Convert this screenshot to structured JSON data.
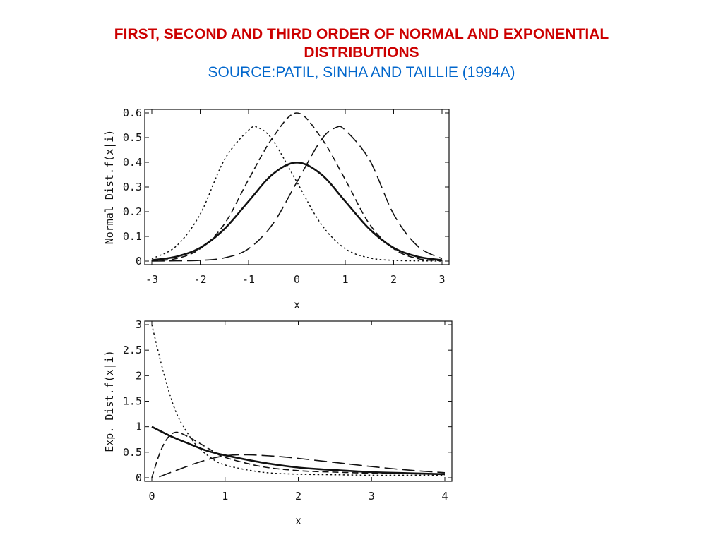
{
  "colors": {
    "title": "#cc0000",
    "source": "#0066cc",
    "ink": "#111111"
  },
  "title_line1": "FIRST, SECOND AND THIRD ORDER OF NORMAL AND EXPONENTIAL",
  "title_line2": "DISTRIBUTIONS",
  "source": "SOURCE:PATIL, SINHA AND TAILLIE (1994A)",
  "chart_data": [
    {
      "type": "line",
      "xlabel": "x",
      "ylabel": "Normal Dist.f(x|i)",
      "xlim": [
        -3,
        3
      ],
      "ylim": [
        0,
        0.6
      ],
      "xticks": [
        "-3",
        "-2",
        "-1",
        "0",
        "1",
        "2",
        "3"
      ],
      "yticks": [
        "0",
        "0.1",
        "0.2",
        "0.3",
        "0.4",
        "0.5",
        "0.6"
      ],
      "grid": false,
      "series": [
        {
          "style": "solid",
          "x": [
            -3,
            -2.5,
            -2,
            -1.5,
            -1,
            -0.5,
            0,
            0.5,
            1,
            1.5,
            2,
            2.5,
            3
          ],
          "y": [
            0.004,
            0.018,
            0.054,
            0.13,
            0.242,
            0.352,
            0.399,
            0.352,
            0.242,
            0.13,
            0.054,
            0.018,
            0.004
          ]
        },
        {
          "style": "dotted",
          "x": [
            -3,
            -2.5,
            -2,
            -1.5,
            -1,
            -0.8,
            -0.5,
            0,
            0.5,
            1,
            1.5,
            2,
            2.5,
            3
          ],
          "y": [
            0.01,
            0.06,
            0.19,
            0.41,
            0.53,
            0.54,
            0.49,
            0.32,
            0.15,
            0.05,
            0.013,
            0.003,
            0.001,
            0
          ]
        },
        {
          "style": "dashed",
          "x": [
            -3,
            -2.5,
            -2,
            -1.5,
            -1,
            -0.5,
            0,
            0.5,
            1,
            1.5,
            2,
            2.5,
            3
          ],
          "y": [
            0.002,
            0.01,
            0.05,
            0.15,
            0.33,
            0.5,
            0.6,
            0.5,
            0.33,
            0.15,
            0.05,
            0.01,
            0.002
          ]
        },
        {
          "style": "longdash",
          "x": [
            -3,
            -2.5,
            -2,
            -1.5,
            -1,
            -0.5,
            0,
            0.5,
            0.8,
            1,
            1.5,
            2,
            2.5,
            3
          ],
          "y": [
            0,
            0.001,
            0.003,
            0.013,
            0.05,
            0.15,
            0.32,
            0.49,
            0.54,
            0.53,
            0.41,
            0.19,
            0.06,
            0.01
          ]
        }
      ]
    },
    {
      "type": "line",
      "xlabel": "x",
      "ylabel": "Exp. Dist.f(x|i)",
      "xlim": [
        0,
        4
      ],
      "ylim": [
        0,
        3
      ],
      "xticks": [
        "0",
        "1",
        "2",
        "3",
        "4"
      ],
      "yticks": [
        "0",
        "0.5",
        "1",
        "1.5",
        "2",
        "2.5",
        "3"
      ],
      "grid": false,
      "series": [
        {
          "style": "solid",
          "x": [
            0,
            0.25,
            0.5,
            0.75,
            1,
            1.5,
            2,
            2.5,
            3,
            3.5,
            4
          ],
          "y": [
            1,
            0.82,
            0.67,
            0.53,
            0.44,
            0.3,
            0.2,
            0.15,
            0.11,
            0.09,
            0.07
          ]
        },
        {
          "style": "dotted",
          "x": [
            0,
            0.1,
            0.2,
            0.3,
            0.4,
            0.6,
            0.8,
            1,
            1.5,
            2,
            2.5,
            3,
            3.5,
            4
          ],
          "y": [
            3,
            2.4,
            1.85,
            1.4,
            1.08,
            0.65,
            0.4,
            0.25,
            0.11,
            0.07,
            0.06,
            0.05,
            0.05,
            0.05
          ]
        },
        {
          "style": "dashed",
          "x": [
            0,
            0.1,
            0.2,
            0.3,
            0.4,
            0.6,
            0.8,
            1,
            1.5,
            2,
            2.5,
            3,
            3.5,
            4
          ],
          "y": [
            0,
            0.45,
            0.75,
            0.88,
            0.87,
            0.72,
            0.55,
            0.4,
            0.22,
            0.14,
            0.11,
            0.09,
            0.08,
            0.07
          ]
        },
        {
          "style": "longdash",
          "x": [
            0.1,
            0.4,
            0.7,
            1,
            1.3,
            1.7,
            2,
            2.5,
            3,
            3.5,
            4
          ],
          "y": [
            0.02,
            0.18,
            0.33,
            0.43,
            0.45,
            0.42,
            0.38,
            0.3,
            0.22,
            0.15,
            0.1
          ]
        }
      ]
    }
  ]
}
